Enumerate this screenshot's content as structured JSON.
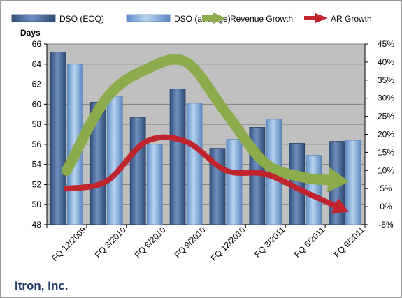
{
  "chart_data": {
    "type": "bar",
    "title": "",
    "ylabel": "Days",
    "company": "Itron, Inc.",
    "categories": [
      "FQ 12/2009",
      "FQ 3/2010",
      "FQ 6/2010",
      "FQ 9/2010",
      "FQ 12/2010",
      "FQ 3/2011",
      "FQ 6/2011",
      "FQ 9/2011"
    ],
    "ylim": [
      48,
      66
    ],
    "yticks": [
      "48",
      "50",
      "52",
      "54",
      "56",
      "58",
      "60",
      "62",
      "64",
      "66"
    ],
    "y2lim": [
      -5,
      45
    ],
    "y2ticks": [
      "-5%",
      "0%",
      "5%",
      "10%",
      "15%",
      "20%",
      "25%",
      "30%",
      "35%",
      "40%",
      "45%"
    ],
    "grid": true,
    "legend_position": "top",
    "series": [
      {
        "name": "DSO (EOQ)",
        "kind": "bar",
        "color": "#4a6ea0",
        "values": [
          65.2,
          60.2,
          58.7,
          61.5,
          55.6,
          57.7,
          56.1,
          56.3
        ]
      },
      {
        "name": "DSO (average)",
        "kind": "bar",
        "color": "#8db4e2",
        "values": [
          64.0,
          60.8,
          56.0,
          60.1,
          56.5,
          58.5,
          54.9,
          56.4
        ]
      },
      {
        "name": "Revenue Growth",
        "kind": "line",
        "axis": "right",
        "color": "#8cab4c",
        "values": [
          10,
          30,
          38,
          40,
          26,
          12,
          8,
          7
        ]
      },
      {
        "name": "AR Growth",
        "kind": "line",
        "axis": "right",
        "color": "#c0242c",
        "values": [
          5,
          7,
          18,
          18,
          10,
          9,
          4,
          -1
        ]
      }
    ]
  }
}
